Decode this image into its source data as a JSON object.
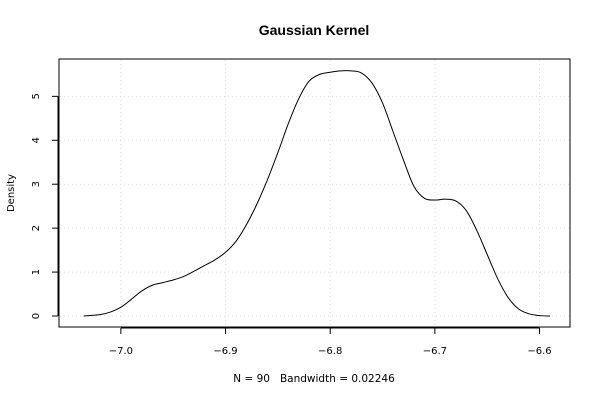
{
  "chart_data": {
    "type": "line",
    "title": "Gaussian Kernel",
    "xlabel": "N = 90   Bandwidth = 0.02246",
    "ylabel": "Density",
    "xlim": [
      -7.04,
      -6.59
    ],
    "ylim": [
      0,
      5.6
    ],
    "grid": true,
    "x_ticks": [
      {
        "value": -7.0,
        "label": "−7.0"
      },
      {
        "value": -6.9,
        "label": "−6.9"
      },
      {
        "value": -6.8,
        "label": "−6.8"
      },
      {
        "value": -6.7,
        "label": "−6.7"
      },
      {
        "value": -6.6,
        "label": "−6.6"
      }
    ],
    "y_ticks": [
      {
        "value": 0,
        "label": "0"
      },
      {
        "value": 1,
        "label": "1"
      },
      {
        "value": 2,
        "label": "2"
      },
      {
        "value": 3,
        "label": "3"
      },
      {
        "value": 4,
        "label": "4"
      },
      {
        "value": 5,
        "label": "5"
      }
    ],
    "series": [
      {
        "x": [
          -7.0355,
          -7.02,
          -7.01,
          -7.0,
          -6.99,
          -6.98,
          -6.97,
          -6.96,
          -6.95,
          -6.94,
          -6.93,
          -6.92,
          -6.91,
          -6.9,
          -6.89,
          -6.88,
          -6.87,
          -6.86,
          -6.85,
          -6.84,
          -6.83,
          -6.82,
          -6.81,
          -6.8,
          -6.79,
          -6.78,
          -6.77,
          -6.76,
          -6.75,
          -6.74,
          -6.73,
          -6.72,
          -6.71,
          -6.7,
          -6.69,
          -6.68,
          -6.67,
          -6.66,
          -6.65,
          -6.64,
          -6.63,
          -6.62,
          -6.61,
          -6.6,
          -6.59
        ],
        "y": [
          0.0,
          0.03,
          0.09,
          0.2,
          0.38,
          0.57,
          0.7,
          0.76,
          0.82,
          0.9,
          1.02,
          1.15,
          1.28,
          1.45,
          1.7,
          2.08,
          2.55,
          3.1,
          3.72,
          4.38,
          4.95,
          5.35,
          5.5,
          5.55,
          5.58,
          5.58,
          5.53,
          5.3,
          4.85,
          4.2,
          3.55,
          2.95,
          2.68,
          2.64,
          2.66,
          2.62,
          2.4,
          1.95,
          1.4,
          0.85,
          0.42,
          0.16,
          0.05,
          0.01,
          0.0
        ]
      }
    ]
  }
}
